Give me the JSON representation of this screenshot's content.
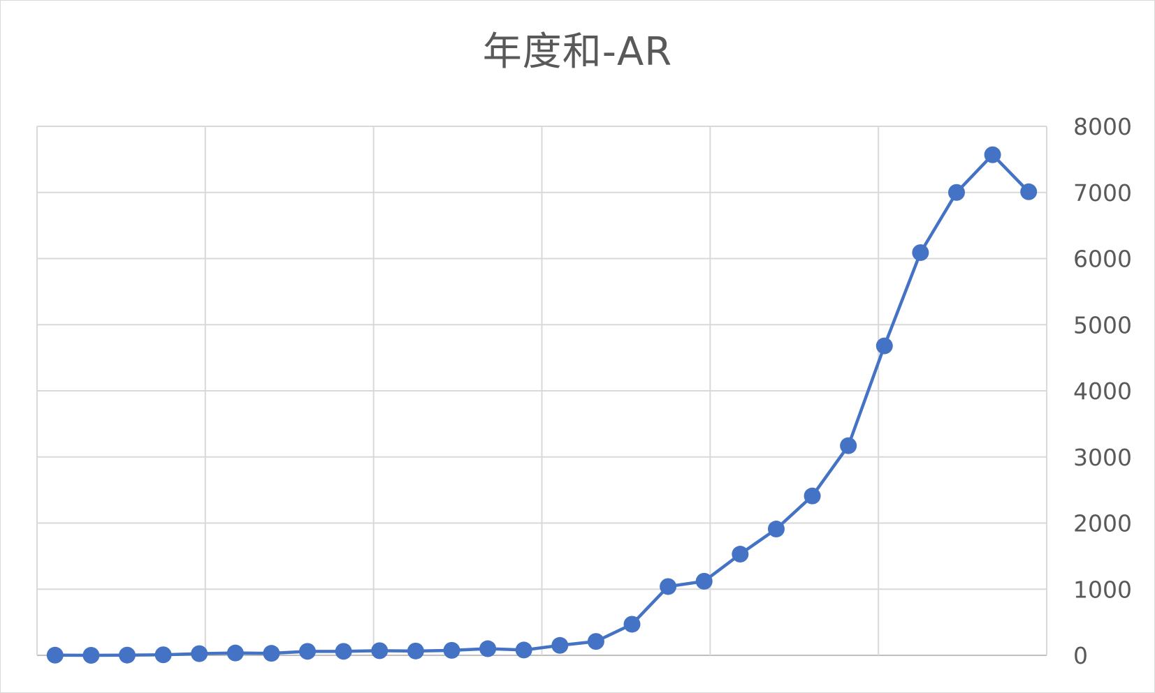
{
  "chart_data": {
    "type": "line",
    "title": "年度和-AR",
    "xlabel": "",
    "ylabel": "",
    "x_count": 28,
    "x_ticks_shown": false,
    "y_axis_position": "right",
    "ylim": [
      0,
      8000
    ],
    "y_ticks": [
      "0",
      "1000",
      "2000",
      "3000",
      "4000",
      "5000",
      "6000",
      "7000",
      "8000"
    ],
    "grid": true,
    "legend": "none",
    "series": [
      {
        "color": "#4472c4",
        "marker": "circle",
        "values": [
          2,
          0,
          3,
          8,
          25,
          35,
          30,
          60,
          60,
          70,
          65,
          75,
          100,
          80,
          150,
          210,
          470,
          1040,
          1120,
          1530,
          1910,
          2410,
          3170,
          4680,
          6090,
          7000,
          7570,
          7010
        ]
      }
    ]
  }
}
